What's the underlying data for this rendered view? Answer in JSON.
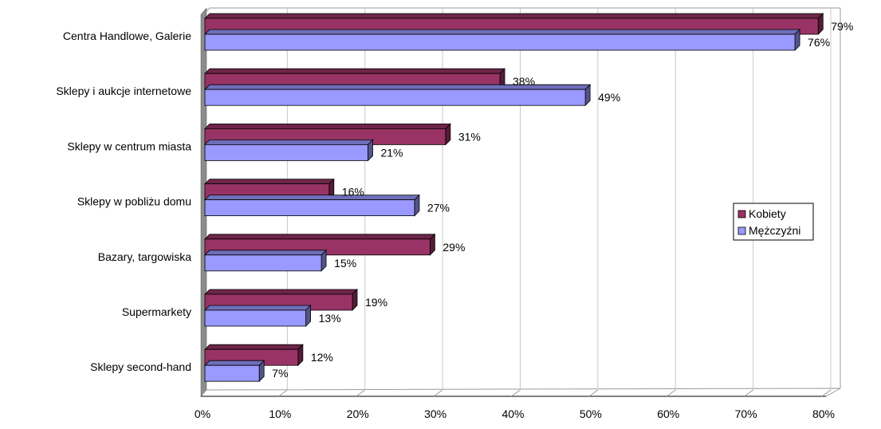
{
  "chart_data": {
    "type": "bar",
    "orientation": "horizontal",
    "three_d": true,
    "categories": [
      "Centra Handlowe, Galerie",
      "Sklepy i aukcje internetowe",
      "Sklepy w centrum miasta",
      "Sklepy w pobliżu domu",
      "Bazary, targowiska",
      "Supermarkety",
      "Sklepy second-hand"
    ],
    "series": [
      {
        "name": "Kobiety",
        "color": "#993366",
        "values": [
          79,
          38,
          31,
          16,
          29,
          19,
          12
        ],
        "labels": [
          "79%",
          "38%",
          "31%",
          "16%",
          "29%",
          "19%",
          "12%"
        ]
      },
      {
        "name": "Mężczyźni",
        "color": "#9999FF",
        "values": [
          76,
          49,
          21,
          27,
          15,
          13,
          7
        ],
        "labels": [
          "76%",
          "49%",
          "21%",
          "27%",
          "15%",
          "13%",
          "7%"
        ]
      }
    ],
    "x_ticks": [
      "0%",
      "10%",
      "20%",
      "30%",
      "40%",
      "50%",
      "60%",
      "70%",
      "80%"
    ],
    "xlim": [
      0,
      80
    ],
    "title": "",
    "xlabel": "",
    "ylabel": "",
    "grid": "vertical",
    "legend_position": "right"
  }
}
